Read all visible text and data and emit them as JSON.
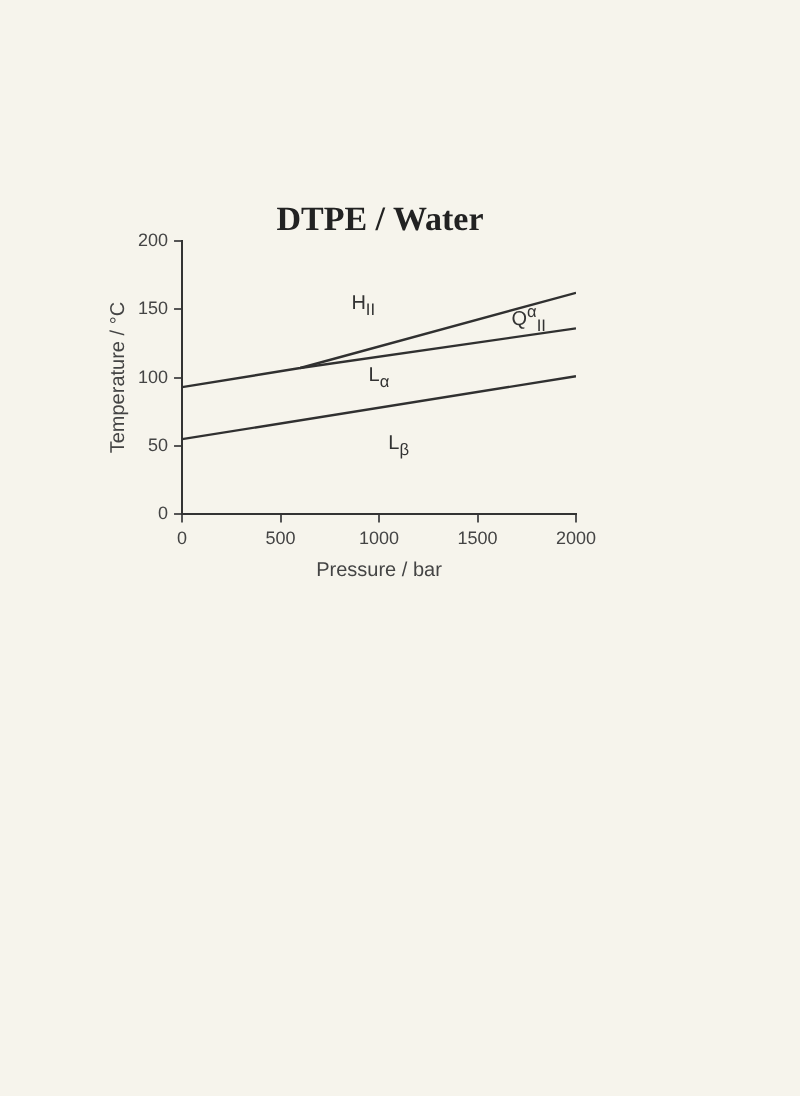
{
  "chart_data": {
    "type": "line",
    "title": "DTPE / Water",
    "xlabel": "Pressure / bar",
    "ylabel": "Temperature / °C",
    "xlim": [
      0,
      2000
    ],
    "xticks": [
      0,
      500,
      1000,
      1500,
      2000
    ],
    "ylim": [
      0,
      200
    ],
    "yticks": [
      0,
      50,
      100,
      150,
      200
    ],
    "grid": false,
    "legend": false,
    "marker": "none",
    "line_style": "solid",
    "series": [
      {
        "color": "#303030",
        "x": [
          0,
          600,
          2000
        ],
        "values": [
          93,
          107,
          162
        ]
      },
      {
        "color": "#303030",
        "x": [
          600,
          2000
        ],
        "values": [
          107,
          136
        ]
      },
      {
        "color": "#303030",
        "x": [
          0,
          2000
        ],
        "values": [
          55,
          101
        ]
      }
    ],
    "annotations": [
      "H$_{II}$",
      "Q$^{α}$$_{II}$",
      "L$_{α}$",
      "L$_{β}$"
    ]
  }
}
